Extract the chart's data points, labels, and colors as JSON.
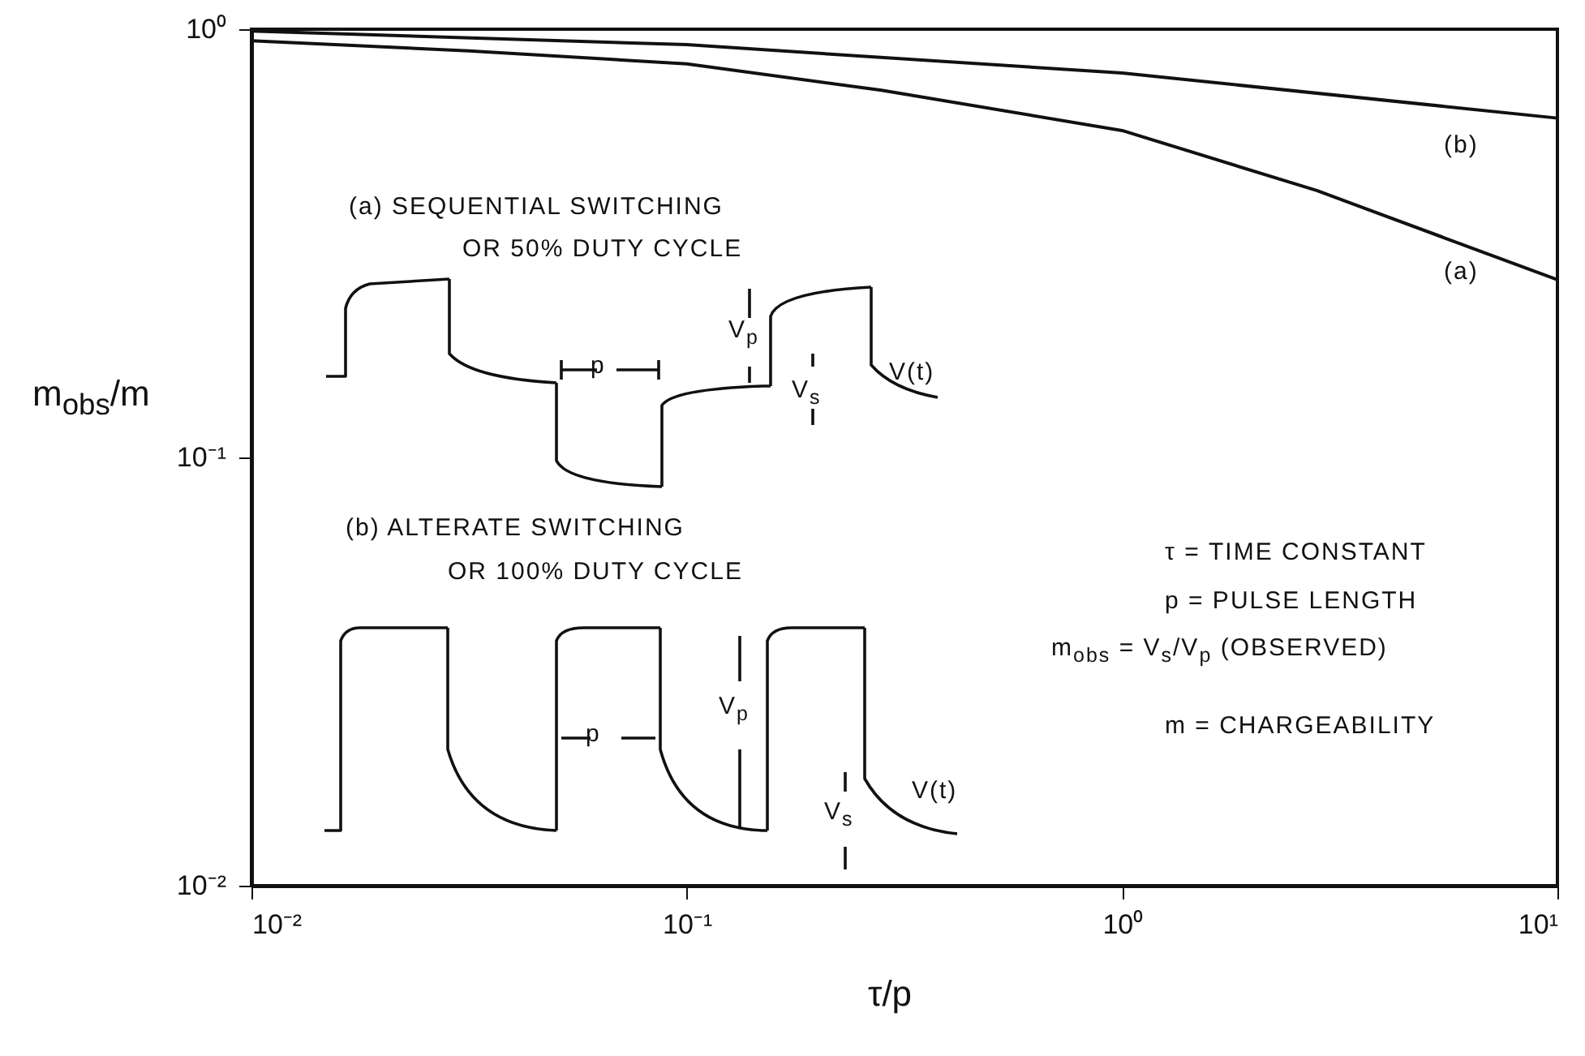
{
  "chart_data": {
    "type": "line",
    "xlabel": "τ/p",
    "ylabel": "m$_{obs}$/m",
    "log": "xy",
    "grid": false,
    "line_style": "solid",
    "marker": "none",
    "xlim": [
      0.01,
      10
    ],
    "ylim": [
      0.01,
      1
    ],
    "xticks": [
      {
        "value": 0.01,
        "label": "10⁻²"
      },
      {
        "value": 0.1,
        "label": "10⁻¹"
      },
      {
        "value": 1,
        "label": "10⁰"
      },
      {
        "value": 10,
        "label": "10¹"
      }
    ],
    "yticks": [
      {
        "value": 0.01,
        "label": "10⁻²"
      },
      {
        "value": 0.1,
        "label": "10⁻¹"
      },
      {
        "value": 1,
        "label": "10⁰"
      }
    ],
    "series": [
      {
        "color": "#111111",
        "x": [
          0.01,
          0.0316,
          0.1,
          0.28,
          1,
          2.8,
          10
        ],
        "values": [
          0.94,
          0.89,
          0.83,
          0.72,
          0.58,
          0.42,
          0.26
        ]
      },
      {
        "color": "#111111",
        "x": [
          0.01,
          0.1,
          1,
          10
        ],
        "values": [
          0.99,
          0.92,
          0.79,
          0.62
        ]
      }
    ],
    "annotations": [
      "(a)",
      "(b)",
      "(a) SEQUENTIAL SWITCHING",
      "OR 50% DUTY CYCLE",
      "(b) ALTERATE SWITCHING",
      "OR 100% DUTY CYCLE",
      "p",
      "V$_{p}$",
      "V$_{s}$",
      "V(t)",
      "p",
      "V$_{p}$",
      "V$_{s}$",
      "V(t)",
      "τ = TIME CONSTANT",
      "p = PULSE LENGTH",
      "m$_{obs}$ = V$_{s}$/V$_{p}$ (OBSERVED)",
      "m = CHARGEABILITY"
    ]
  }
}
